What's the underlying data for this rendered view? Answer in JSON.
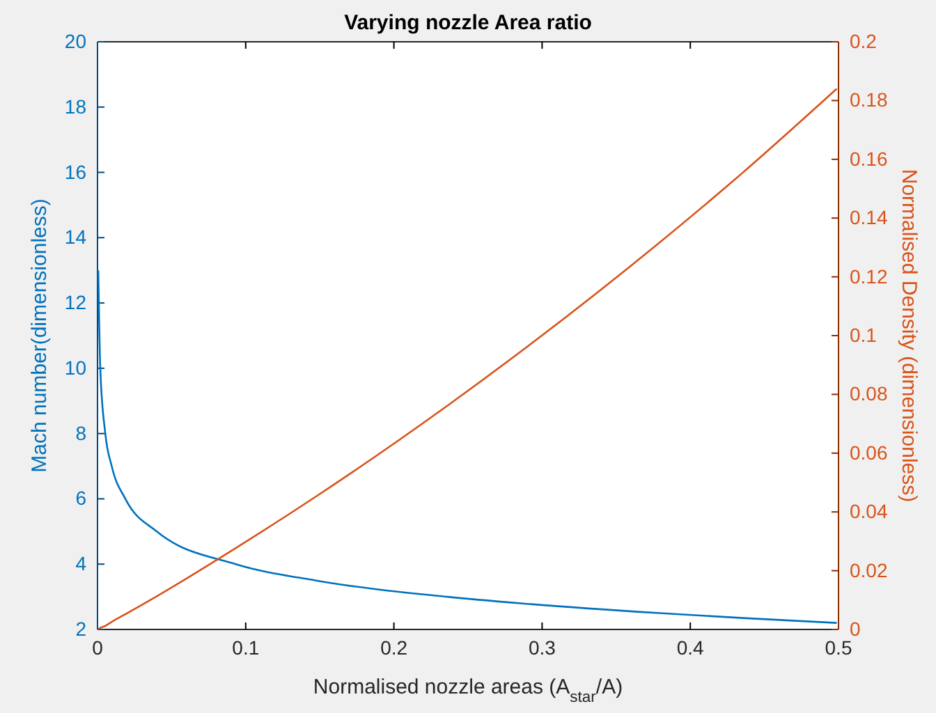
{
  "chart_data": {
    "type": "line",
    "title": "Varying nozzle Area ratio",
    "xlabel": "Normalised nozzle areas (A$_{star}$/A)",
    "ylabel": "Mach number(dimensionless)",
    "y2label": "Normalised Density (dimensionless)",
    "xlim": [
      0,
      0.5
    ],
    "xticks": [
      0,
      0.1,
      0.2,
      0.3,
      0.4,
      0.5
    ],
    "ylim": [
      2,
      20
    ],
    "yticks": [
      2,
      4,
      6,
      8,
      10,
      12,
      14,
      16,
      18,
      20
    ],
    "y2lim": [
      0,
      0.2
    ],
    "y2ticks": [
      0,
      0.02,
      0.04,
      0.06,
      0.08,
      0.1,
      0.12,
      0.14,
      0.16,
      0.18,
      0.2
    ],
    "grid": false,
    "marker": "none",
    "line_style": "solid",
    "series": [
      {
        "color": "#0072bd",
        "x": [
          0.00053,
          0.00187,
          0.00526,
          0.0096,
          0.0188,
          0.04,
          0.0933,
          0.1473,
          0.2362,
          0.2857,
          0.3793,
          0.4357,
          0.4988
        ],
        "values": [
          13,
          10,
          8,
          7,
          6,
          5,
          4,
          3.5,
          3,
          2.8,
          2.5,
          2.35,
          2.2
        ]
      },
      {
        "color": "#d95319",
        "axis": "y2",
        "x": [
          0.00053,
          0.00187,
          0.00526,
          0.0096,
          0.0188,
          0.04,
          0.0933,
          0.1473,
          0.2362,
          0.2857,
          0.3793,
          0.4357,
          0.4988
        ],
        "values": [
          0.0001,
          0.0005,
          0.0012,
          0.0026,
          0.0052,
          0.0113,
          0.0277,
          0.0452,
          0.0762,
          0.0946,
          0.1317,
          0.1556,
          0.184
        ]
      }
    ]
  }
}
